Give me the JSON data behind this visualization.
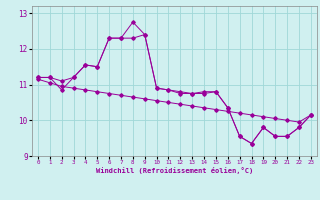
{
  "xlabel": "Windchill (Refroidissement éolien,°C)",
  "xlim": [
    -0.5,
    23.5
  ],
  "ylim": [
    9,
    13.2
  ],
  "yticks": [
    9,
    10,
    11,
    12,
    13
  ],
  "xticks": [
    0,
    1,
    2,
    3,
    4,
    5,
    6,
    7,
    8,
    9,
    10,
    11,
    12,
    13,
    14,
    15,
    16,
    17,
    18,
    19,
    20,
    21,
    22,
    23
  ],
  "background_color": "#d0f0f0",
  "grid_color": "#a0d8d8",
  "line_color": "#990099",
  "series1_x": [
    0,
    1,
    2,
    3,
    4,
    5,
    6,
    7,
    8,
    9,
    10,
    11,
    12,
    13,
    14,
    15,
    16,
    17,
    18,
    19,
    20,
    21,
    22,
    23
  ],
  "series1_y": [
    11.2,
    11.2,
    11.1,
    11.2,
    11.55,
    11.5,
    12.3,
    12.3,
    12.75,
    12.4,
    10.9,
    10.85,
    10.8,
    10.75,
    10.8,
    10.8,
    10.35,
    9.55,
    9.35,
    9.8,
    9.55,
    9.55,
    9.8,
    10.15
  ],
  "series2_x": [
    0,
    1,
    2,
    3,
    4,
    5,
    6,
    7,
    8,
    9,
    10,
    11,
    12,
    13,
    14,
    15,
    16,
    17,
    18,
    19,
    20,
    21,
    22,
    23
  ],
  "series2_y": [
    11.2,
    11.2,
    10.85,
    11.2,
    11.55,
    11.5,
    12.3,
    12.3,
    12.3,
    12.4,
    10.9,
    10.85,
    10.75,
    10.75,
    10.75,
    10.8,
    10.35,
    9.55,
    9.35,
    9.8,
    9.55,
    9.55,
    9.8,
    10.15
  ],
  "trend_x": [
    0,
    1,
    2,
    3,
    4,
    5,
    6,
    7,
    8,
    9,
    10,
    11,
    12,
    13,
    14,
    15,
    16,
    17,
    18,
    19,
    20,
    21,
    22,
    23
  ],
  "trend_y": [
    11.15,
    11.05,
    10.95,
    10.9,
    10.85,
    10.8,
    10.75,
    10.7,
    10.65,
    10.6,
    10.55,
    10.5,
    10.45,
    10.4,
    10.35,
    10.3,
    10.25,
    10.2,
    10.15,
    10.1,
    10.05,
    10.0,
    9.95,
    10.15
  ]
}
